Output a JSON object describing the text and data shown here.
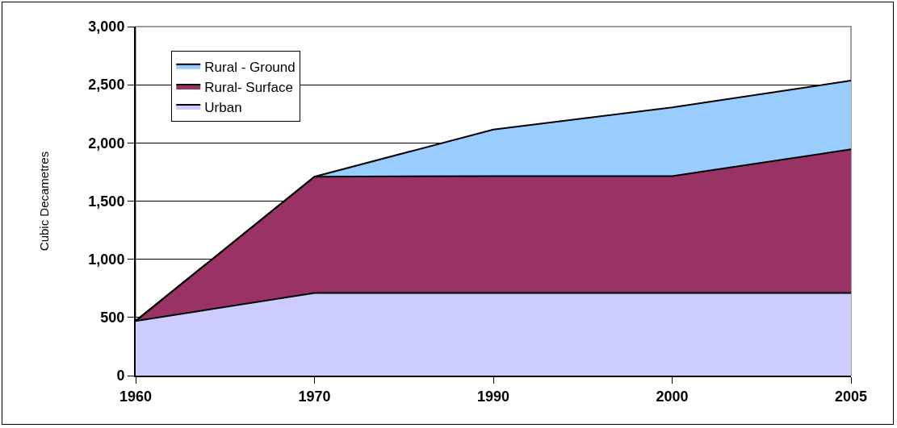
{
  "chart_data": {
    "type": "area",
    "stacked": true,
    "ylabel": "Cubic Decametres",
    "categories": [
      "1960",
      "1970",
      "1990",
      "2000",
      "2005"
    ],
    "series": [
      {
        "name": "Urban",
        "color": "#ccccff",
        "values": [
          470,
          710,
          710,
          710,
          710
        ]
      },
      {
        "name": "Rural- Surface",
        "color": "#993366",
        "values": [
          0,
          1000,
          1005,
          1005,
          1235
        ]
      },
      {
        "name": "Rural - Ground",
        "color": "#99ccff",
        "values": [
          0,
          0,
          400,
          590,
          590
        ]
      }
    ],
    "ylim": [
      0,
      3000
    ],
    "yticks": [
      0,
      500,
      {
        "value": 1000,
        "label": "1,000"
      },
      {
        "value": 1500,
        "label": "1,500"
      },
      {
        "value": 2000,
        "label": "2,000"
      },
      {
        "value": 2500,
        "label": "2,500"
      },
      {
        "value": 3000,
        "label": "3,000"
      }
    ],
    "grid": "y",
    "legend": "top left"
  }
}
